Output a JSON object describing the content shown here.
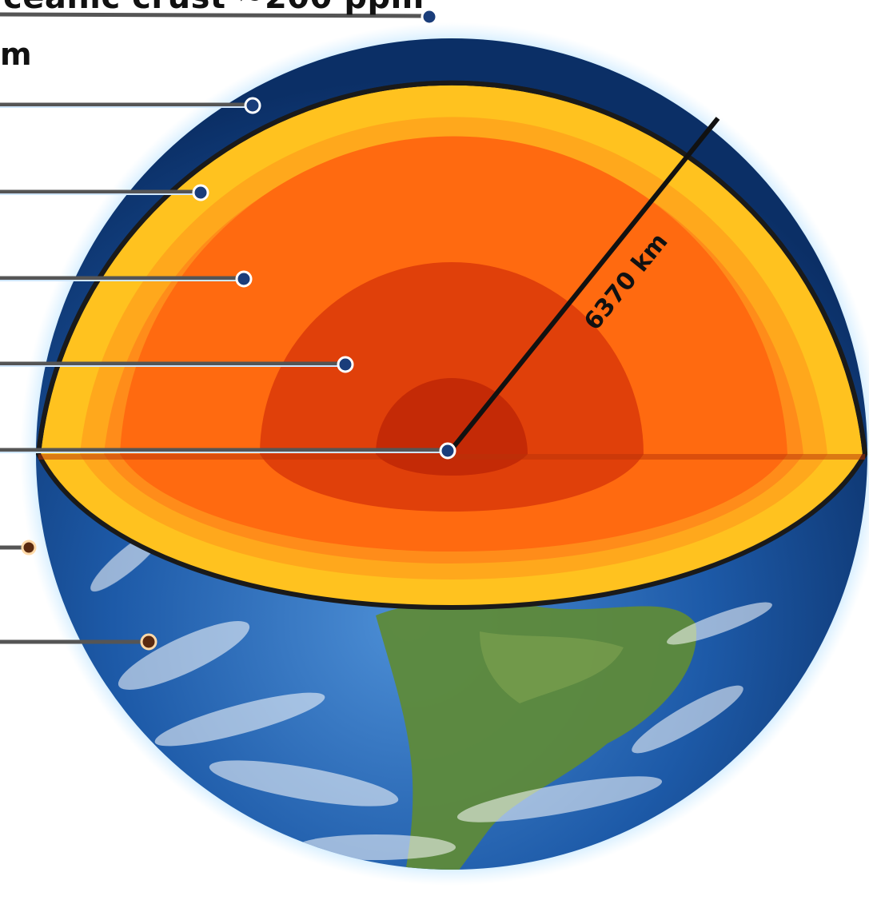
{
  "labels": {
    "top_partial": "ceanic crust ~200 ppm",
    "m_partial": "m"
  },
  "radius_label": "6370 km",
  "colors": {
    "crust": "#ffc21f",
    "mantle_upper": "#ff8c1a",
    "mantle_lower": "#ff6a10",
    "outer_core": "#e0400a",
    "inner_core": "#c42a06",
    "ocean": "#1a5fb4",
    "atmosphere_glow": "#33aaff",
    "land": "#5e8a3a"
  },
  "layer_count": 9
}
